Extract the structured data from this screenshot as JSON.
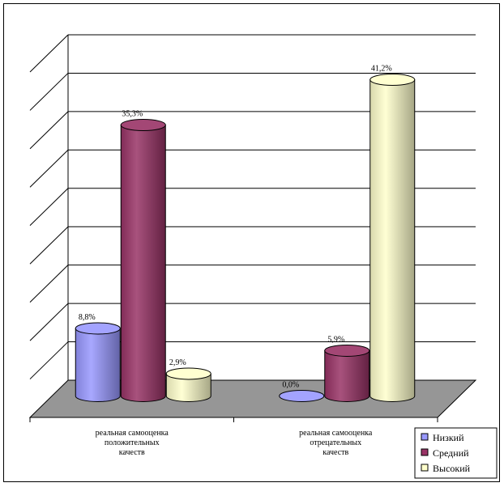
{
  "chart_data": {
    "type": "bar",
    "title": "",
    "xlabel": "",
    "ylabel": "",
    "categories": [
      [
        "реальная самооценка",
        "положительных",
        "качеств"
      ],
      [
        "реальная самооценка",
        "отрецательных",
        "качеств"
      ]
    ],
    "series": [
      {
        "name": "Низкий",
        "color": "#9999ff",
        "values": [
          8.8,
          0.0
        ],
        "labels": [
          "8,8%",
          "0,0%"
        ]
      },
      {
        "name": "Средний",
        "color": "#993366",
        "values": [
          35.3,
          5.9
        ],
        "labels": [
          "35,3%",
          "5,9%"
        ]
      },
      {
        "name": "Высокий",
        "color": "#ffffcc",
        "values": [
          2.9,
          41.2
        ],
        "labels": [
          "2,9%",
          "41,2%"
        ]
      }
    ],
    "ylim": [
      0,
      45
    ],
    "grid": true,
    "chart_style": "3d-cylinder",
    "legend": {
      "position": "bottom-right"
    }
  }
}
